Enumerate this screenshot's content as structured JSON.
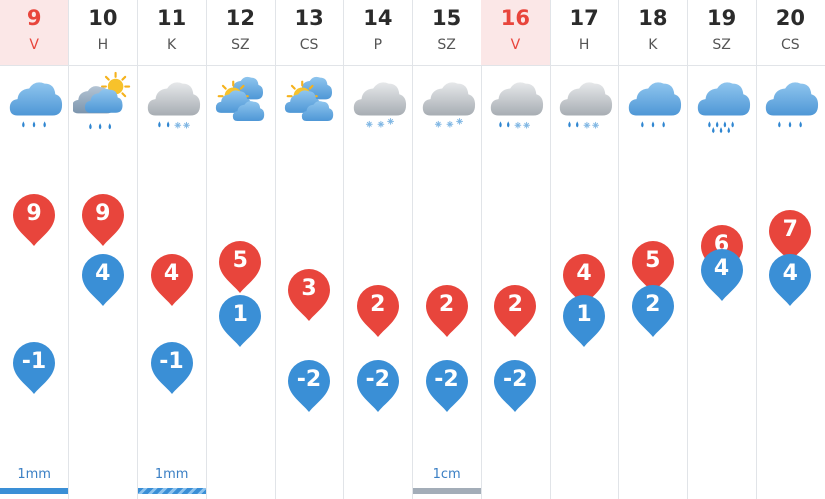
{
  "colors": {
    "weekend_text": "#e8453c",
    "weekend_bg": "#fbe7e7",
    "max_drop": "#e8453c",
    "min_drop": "#3a8fd6",
    "precip_rain": "#3a8fd6",
    "precip_snow": "#a3adb8"
  },
  "days": [
    {
      "day": "9",
      "name": "V",
      "weekend": true,
      "icon": "cloud-rain-icon",
      "max": "9",
      "min": "-1",
      "max_level": 0.85,
      "min_level": 0.28,
      "precip": "1mm",
      "precip_kind": "rain"
    },
    {
      "day": "10",
      "name": "H",
      "weekend": false,
      "icon": "sun-cloud-rain-icon",
      "max": "9",
      "min": "4",
      "max_level": 0.85,
      "min_level": 0.62,
      "precip": "",
      "precip_kind": ""
    },
    {
      "day": "11",
      "name": "K",
      "weekend": false,
      "icon": "cloud-sleet-icon",
      "max": "4",
      "min": "-1",
      "max_level": 0.62,
      "min_level": 0.28,
      "precip": "1mm",
      "precip_kind": "mixed"
    },
    {
      "day": "12",
      "name": "SZ",
      "weekend": false,
      "icon": "sun-clouds-icon",
      "max": "5",
      "min": "1",
      "max_level": 0.67,
      "min_level": 0.46,
      "precip": "",
      "precip_kind": ""
    },
    {
      "day": "13",
      "name": "CS",
      "weekend": false,
      "icon": "sun-clouds-icon",
      "max": "3",
      "min": "-2",
      "max_level": 0.56,
      "min_level": 0.21,
      "precip": "",
      "precip_kind": ""
    },
    {
      "day": "14",
      "name": "P",
      "weekend": false,
      "icon": "cloud-light-snow-icon",
      "max": "2",
      "min": "-2",
      "max_level": 0.5,
      "min_level": 0.21,
      "precip": "",
      "precip_kind": ""
    },
    {
      "day": "15",
      "name": "SZ",
      "weekend": false,
      "icon": "cloud-light-snow-icon",
      "max": "2",
      "min": "-2",
      "max_level": 0.5,
      "min_level": 0.21,
      "precip": "1cm",
      "precip_kind": "snow"
    },
    {
      "day": "16",
      "name": "V",
      "weekend": true,
      "icon": "cloud-rain-snow-icon",
      "max": "2",
      "min": "-2",
      "max_level": 0.5,
      "min_level": 0.21,
      "precip": "",
      "precip_kind": ""
    },
    {
      "day": "17",
      "name": "H",
      "weekend": false,
      "icon": "cloud-rain-snow-icon",
      "max": "4",
      "min": "1",
      "max_level": 0.62,
      "min_level": 0.46,
      "precip": "",
      "precip_kind": ""
    },
    {
      "day": "18",
      "name": "K",
      "weekend": false,
      "icon": "cloud-rain-icon",
      "max": "5",
      "min": "2",
      "max_level": 0.67,
      "min_level": 0.5,
      "precip": "",
      "precip_kind": ""
    },
    {
      "day": "19",
      "name": "SZ",
      "weekend": false,
      "icon": "cloud-heavy-rain-icon",
      "max": "6",
      "min": "4",
      "max_level": 0.73,
      "min_level": 0.64,
      "precip": "",
      "precip_kind": ""
    },
    {
      "day": "20",
      "name": "CS",
      "weekend": false,
      "icon": "cloud-rain-icon",
      "max": "7",
      "min": "4",
      "max_level": 0.79,
      "min_level": 0.62,
      "precip": "",
      "precip_kind": ""
    }
  ]
}
